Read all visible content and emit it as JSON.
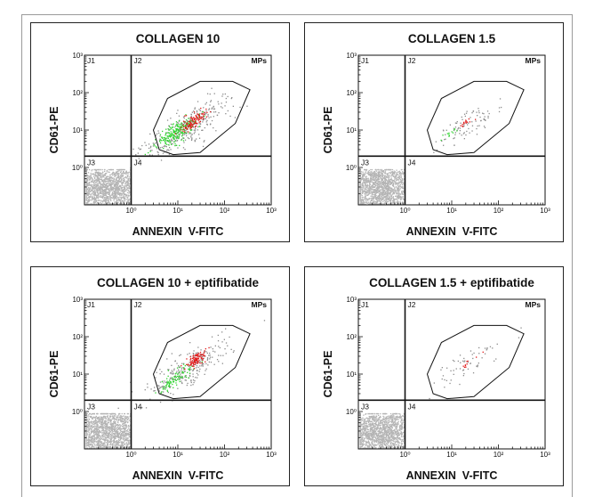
{
  "chart_data": [
    {
      "type": "scatter",
      "title": "COLLAGEN 10",
      "xlabel": "ANNEXIN  V-FITC",
      "ylabel": "CD61-PE",
      "x_scale": "log",
      "y_scale": "log",
      "xlim": [
        0.1,
        1000
      ],
      "ylim": [
        0.1,
        1000
      ],
      "x_ticks": [
        "10⁰",
        "10¹",
        "10²",
        "10³"
      ],
      "y_ticks": [
        "10⁰",
        "10¹",
        "10²",
        "10³"
      ],
      "quadrant_divider": {
        "x": 1,
        "y": 2
      },
      "quadrant_labels": [
        "J1",
        "J2",
        "J3",
        "J4"
      ],
      "gate_label": "MPs",
      "gate_polygon": [
        [
          4,
          3
        ],
        [
          3,
          10
        ],
        [
          6,
          70
        ],
        [
          30,
          200
        ],
        [
          150,
          200
        ],
        [
          350,
          120
        ],
        [
          170,
          15
        ],
        [
          30,
          2.5
        ],
        [
          8,
          2.2
        ]
      ],
      "populations": [
        {
          "color": "gray",
          "center": [
            15,
            12
          ],
          "spread": [
            0.45,
            0.4
          ],
          "count": 300
        },
        {
          "color": "green",
          "center": [
            9,
            9
          ],
          "spread": [
            0.22,
            0.2
          ],
          "count": 220
        },
        {
          "color": "red",
          "center": [
            22,
            18
          ],
          "spread": [
            0.14,
            0.17
          ],
          "count": 110
        },
        {
          "color": "lightgray-dense",
          "center": [
            0.3,
            0.3
          ],
          "spread": [
            0.3,
            0.3
          ],
          "count": 1400
        }
      ]
    },
    {
      "type": "scatter",
      "title": "COLLAGEN 1.5",
      "xlabel": "ANNEXIN  V-FITC",
      "ylabel": "CD61-PE",
      "x_scale": "log",
      "y_scale": "log",
      "xlim": [
        0.1,
        1000
      ],
      "ylim": [
        0.1,
        1000
      ],
      "x_ticks": [
        "10⁰",
        "10¹",
        "10²",
        "10³"
      ],
      "y_ticks": [
        "10⁰",
        "10¹",
        "10²",
        "10³"
      ],
      "quadrant_divider": {
        "x": 1,
        "y": 2
      },
      "quadrant_labels": [
        "J1",
        "J2",
        "J3",
        "J4"
      ],
      "gate_label": "MPs",
      "gate_polygon": [
        [
          4,
          3
        ],
        [
          3,
          10
        ],
        [
          6,
          70
        ],
        [
          30,
          200
        ],
        [
          150,
          200
        ],
        [
          350,
          120
        ],
        [
          170,
          15
        ],
        [
          30,
          2.5
        ],
        [
          8,
          2.2
        ]
      ],
      "populations": [
        {
          "color": "gray",
          "center": [
            20,
            15
          ],
          "spread": [
            0.35,
            0.3
          ],
          "count": 90
        },
        {
          "color": "green",
          "center": [
            10,
            9
          ],
          "spread": [
            0.1,
            0.1
          ],
          "count": 12
        },
        {
          "color": "red",
          "center": [
            22,
            17
          ],
          "spread": [
            0.1,
            0.1
          ],
          "count": 15
        },
        {
          "color": "lightgray-dense",
          "center": [
            0.3,
            0.3
          ],
          "spread": [
            0.3,
            0.3
          ],
          "count": 1400
        }
      ]
    },
    {
      "type": "scatter",
      "title": "COLLAGEN 10 + eptifibatide",
      "xlabel": "ANNEXIN  V-FITC",
      "ylabel": "CD61-PE",
      "x_scale": "log",
      "y_scale": "log",
      "xlim": [
        0.1,
        1000
      ],
      "ylim": [
        0.1,
        1000
      ],
      "x_ticks": [
        "10⁰",
        "10¹",
        "10²",
        "10³"
      ],
      "y_ticks": [
        "10⁰",
        "10¹",
        "10²",
        "10³"
      ],
      "quadrant_divider": {
        "x": 1,
        "y": 2
      },
      "quadrant_labels": [
        "J1",
        "J2",
        "J3",
        "J4"
      ],
      "gate_label": "MPs",
      "gate_polygon": [
        [
          4,
          3
        ],
        [
          3,
          10
        ],
        [
          6,
          70
        ],
        [
          30,
          200
        ],
        [
          150,
          200
        ],
        [
          350,
          120
        ],
        [
          170,
          15
        ],
        [
          30,
          2.5
        ],
        [
          8,
          2.2
        ]
      ],
      "populations": [
        {
          "color": "gray",
          "center": [
            18,
            15
          ],
          "spread": [
            0.45,
            0.4
          ],
          "count": 260
        },
        {
          "color": "green",
          "center": [
            9,
            8
          ],
          "spread": [
            0.2,
            0.18
          ],
          "count": 90
        },
        {
          "color": "red",
          "center": [
            24,
            25
          ],
          "spread": [
            0.1,
            0.15
          ],
          "count": 110
        },
        {
          "color": "lightgray-dense",
          "center": [
            0.3,
            0.3
          ],
          "spread": [
            0.3,
            0.3
          ],
          "count": 1400
        }
      ]
    },
    {
      "type": "scatter",
      "title": "COLLAGEN 1.5 + eptifibatide",
      "xlabel": "ANNEXIN  V-FITC",
      "ylabel": "CD61-PE",
      "x_scale": "log",
      "y_scale": "log",
      "xlim": [
        0.1,
        1000
      ],
      "ylim": [
        0.1,
        1000
      ],
      "x_ticks": [
        "10⁰",
        "10¹",
        "10²",
        "10³"
      ],
      "y_ticks": [
        "10⁰",
        "10¹",
        "10²",
        "10³"
      ],
      "quadrant_divider": {
        "x": 1,
        "y": 2
      },
      "quadrant_labels": [
        "J1",
        "J2",
        "J3",
        "J4"
      ],
      "gate_label": "MPs",
      "gate_polygon": [
        [
          4,
          3
        ],
        [
          3,
          10
        ],
        [
          6,
          70
        ],
        [
          30,
          200
        ],
        [
          150,
          200
        ],
        [
          350,
          120
        ],
        [
          170,
          15
        ],
        [
          30,
          2.5
        ],
        [
          8,
          2.2
        ]
      ],
      "populations": [
        {
          "color": "gray",
          "center": [
            20,
            18
          ],
          "spread": [
            0.35,
            0.3
          ],
          "count": 60
        },
        {
          "color": "red",
          "center": [
            25,
            22
          ],
          "spread": [
            0.1,
            0.1
          ],
          "count": 10
        },
        {
          "color": "lightgray-dense",
          "center": [
            0.3,
            0.3
          ],
          "spread": [
            0.3,
            0.3
          ],
          "count": 1400
        }
      ]
    }
  ],
  "colors": {
    "gray": "#8c8c8c",
    "green": "#2fd52f",
    "red": "#e01818",
    "lightgray-dense": "#b4b4b4",
    "outline": "#111111"
  }
}
